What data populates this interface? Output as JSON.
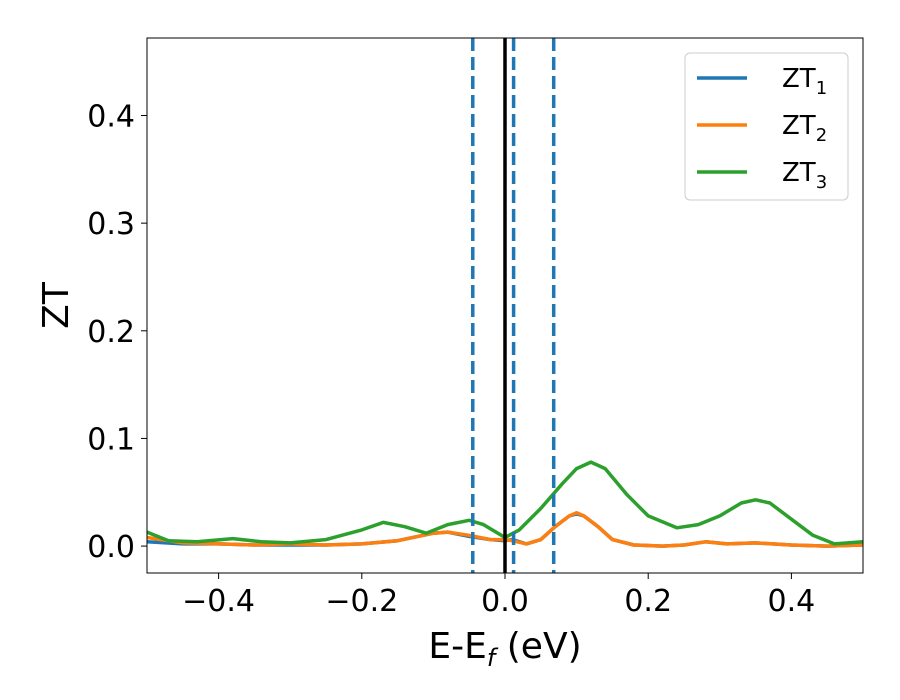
{
  "chart_data": {
    "type": "line",
    "xlabel": "E-E",
    "xlabel_sub": "f",
    "xlabel_unit": " (eV)",
    "ylabel": "ZT",
    "xlim": [
      -0.5,
      0.5
    ],
    "ylim": [
      -0.025,
      0.472
    ],
    "x_ticks": [
      -0.4,
      -0.2,
      0.0,
      0.2,
      0.4
    ],
    "x_tick_labels": [
      "−0.4",
      "−0.2",
      "0.0",
      "0.2",
      "0.4"
    ],
    "y_ticks": [
      0.0,
      0.1,
      0.2,
      0.3,
      0.4
    ],
    "y_tick_labels": [
      "0.0",
      "0.1",
      "0.2",
      "0.3",
      "0.4"
    ],
    "grid": false,
    "legend_position": "top-right",
    "vertical_lines": [
      {
        "x": -0.045,
        "style": "dashed",
        "color": "#1f77b4"
      },
      {
        "x": 0.0,
        "style": "solid",
        "color": "#000000"
      },
      {
        "x": 0.012,
        "style": "dashed",
        "color": "#1f77b4"
      },
      {
        "x": 0.068,
        "style": "dashed",
        "color": "#1f77b4"
      }
    ],
    "series": [
      {
        "name": "ZT",
        "name_sub": "1",
        "color": "#1f77b4",
        "points": [
          [
            -0.5,
            0.004
          ],
          [
            -0.45,
            0.002
          ],
          [
            -0.4,
            0.002
          ],
          [
            -0.35,
            0.001
          ],
          [
            -0.3,
            0.001
          ],
          [
            -0.25,
            0.001
          ],
          [
            -0.2,
            0.002
          ],
          [
            -0.15,
            0.005
          ],
          [
            -0.1,
            0.012
          ],
          [
            -0.08,
            0.013
          ],
          [
            -0.05,
            0.009
          ],
          [
            -0.02,
            0.006
          ],
          [
            0.0,
            0.005
          ],
          [
            0.01,
            0.006
          ],
          [
            0.03,
            0.002
          ],
          [
            0.05,
            0.006
          ],
          [
            0.07,
            0.018
          ],
          [
            0.09,
            0.028
          ],
          [
            0.1,
            0.03
          ],
          [
            0.11,
            0.028
          ],
          [
            0.13,
            0.018
          ],
          [
            0.15,
            0.006
          ],
          [
            0.18,
            0.001
          ],
          [
            0.22,
            0.0
          ],
          [
            0.25,
            0.001
          ],
          [
            0.28,
            0.004
          ],
          [
            0.31,
            0.002
          ],
          [
            0.35,
            0.003
          ],
          [
            0.4,
            0.001
          ],
          [
            0.45,
            0.0
          ],
          [
            0.5,
            0.001
          ]
        ]
      },
      {
        "name": "ZT",
        "name_sub": "2",
        "color": "#ff7f0e",
        "points": [
          [
            -0.5,
            0.008
          ],
          [
            -0.45,
            0.003
          ],
          [
            -0.4,
            0.002
          ],
          [
            -0.35,
            0.001
          ],
          [
            -0.3,
            0.002
          ],
          [
            -0.25,
            0.001
          ],
          [
            -0.2,
            0.002
          ],
          [
            -0.15,
            0.005
          ],
          [
            -0.1,
            0.012
          ],
          [
            -0.08,
            0.013
          ],
          [
            -0.05,
            0.01
          ],
          [
            -0.02,
            0.006
          ],
          [
            0.0,
            0.006
          ],
          [
            0.01,
            0.005
          ],
          [
            0.03,
            0.002
          ],
          [
            0.05,
            0.006
          ],
          [
            0.07,
            0.018
          ],
          [
            0.09,
            0.028
          ],
          [
            0.1,
            0.031
          ],
          [
            0.11,
            0.028
          ],
          [
            0.13,
            0.018
          ],
          [
            0.15,
            0.006
          ],
          [
            0.18,
            0.001
          ],
          [
            0.22,
            0.0
          ],
          [
            0.25,
            0.001
          ],
          [
            0.28,
            0.004
          ],
          [
            0.31,
            0.002
          ],
          [
            0.35,
            0.003
          ],
          [
            0.4,
            0.001
          ],
          [
            0.45,
            0.0
          ],
          [
            0.5,
            0.001
          ]
        ]
      },
      {
        "name": "ZT",
        "name_sub": "3",
        "color": "#2ca02c",
        "points": [
          [
            -0.5,
            0.013
          ],
          [
            -0.47,
            0.005
          ],
          [
            -0.43,
            0.004
          ],
          [
            -0.38,
            0.007
          ],
          [
            -0.34,
            0.004
          ],
          [
            -0.3,
            0.003
          ],
          [
            -0.25,
            0.006
          ],
          [
            -0.2,
            0.015
          ],
          [
            -0.17,
            0.022
          ],
          [
            -0.14,
            0.018
          ],
          [
            -0.11,
            0.012
          ],
          [
            -0.08,
            0.02
          ],
          [
            -0.05,
            0.024
          ],
          [
            -0.03,
            0.02
          ],
          [
            0.0,
            0.008
          ],
          [
            0.02,
            0.015
          ],
          [
            0.05,
            0.035
          ],
          [
            0.08,
            0.058
          ],
          [
            0.1,
            0.072
          ],
          [
            0.12,
            0.078
          ],
          [
            0.14,
            0.072
          ],
          [
            0.17,
            0.048
          ],
          [
            0.2,
            0.028
          ],
          [
            0.24,
            0.017
          ],
          [
            0.27,
            0.02
          ],
          [
            0.3,
            0.028
          ],
          [
            0.33,
            0.04
          ],
          [
            0.35,
            0.043
          ],
          [
            0.37,
            0.04
          ],
          [
            0.4,
            0.025
          ],
          [
            0.43,
            0.01
          ],
          [
            0.46,
            0.002
          ],
          [
            0.5,
            0.004
          ]
        ]
      }
    ]
  }
}
